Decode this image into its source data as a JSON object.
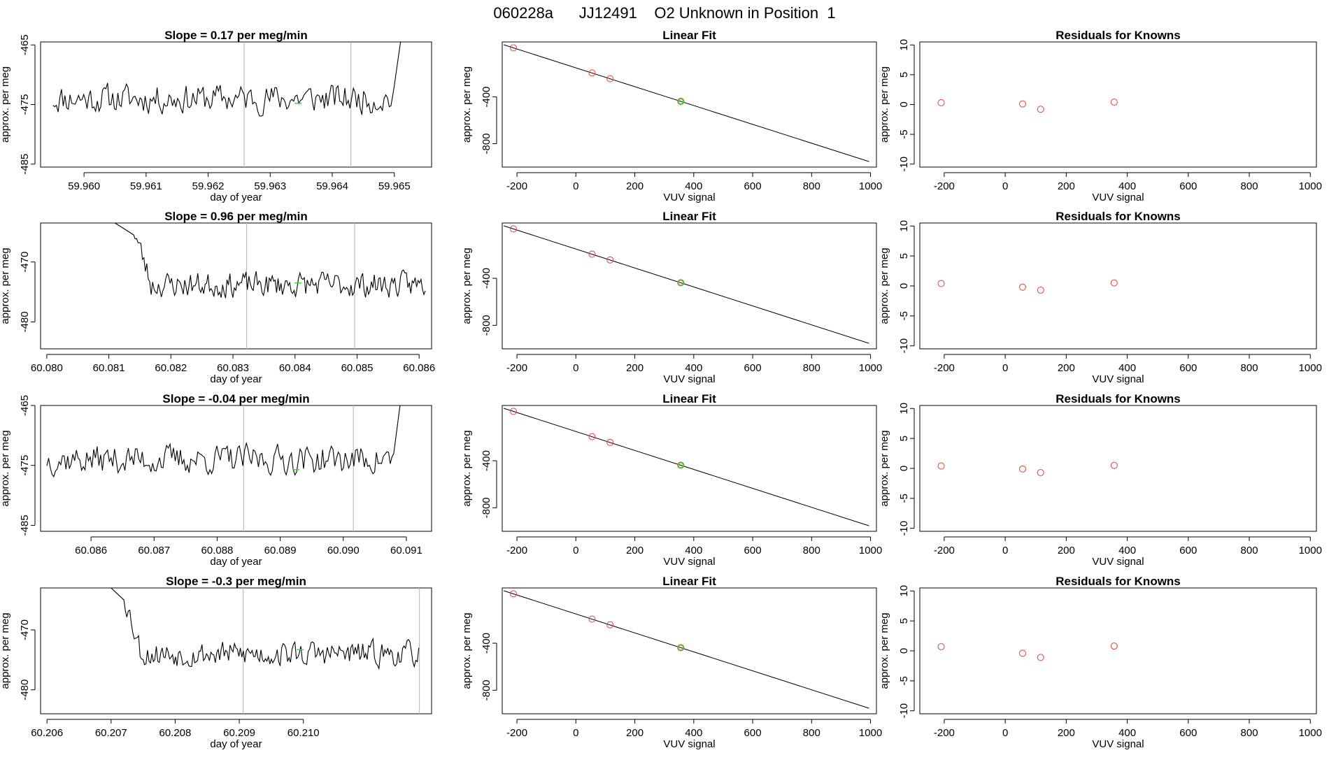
{
  "page_title": "060228a      JJ12491    O2 Unknown in Position  1",
  "colors": {
    "line": "#000000",
    "vline": "#bebebe",
    "known": "#d9534f",
    "unknown": "#33dd33",
    "axis": "#000000"
  },
  "chart_data": [
    {
      "row": 1,
      "type": "line",
      "title": "Slope =  0.17  per meg/min",
      "xlabel": "day of year",
      "ylabel": "approx. per meg",
      "xlim": [
        59.9593,
        59.9656
      ],
      "ylim": [
        -485.5,
        -464.5
      ],
      "xticks": [
        59.96,
        59.961,
        59.962,
        59.963,
        59.964,
        59.965
      ],
      "xtick_labels": [
        "59.960",
        "59.961",
        "59.962",
        "59.963",
        "59.964",
        "59.965"
      ],
      "yticks": [
        -465,
        -475,
        -485
      ],
      "ytick_labels": [
        "-465",
        "-475",
        "-485"
      ],
      "trace": {
        "x_start": 59.9595,
        "x_end": 59.965,
        "mean": -474.0,
        "amp": 2.8,
        "seed": 11,
        "start_tail": null,
        "end_tail": {
          "dx": 0.0001,
          "to": -464.5
        }
      },
      "vlines": [
        59.96258,
        59.9643
      ],
      "marker": {
        "x": 59.96345,
        "y": -474.8
      }
    },
    {
      "row": 2,
      "type": "line",
      "title": "Slope =  0.96  per meg/min",
      "xlabel": "day of year",
      "ylabel": "approx. per meg",
      "xlim": [
        60.0799,
        60.0862
      ],
      "ylim": [
        -484.5,
        -463.5
      ],
      "xticks": [
        60.08,
        60.081,
        60.082,
        60.083,
        60.084,
        60.085,
        60.086
      ],
      "xtick_labels": [
        "60.080",
        "60.081",
        "60.082",
        "60.083",
        "60.084",
        "60.085",
        "60.086"
      ],
      "yticks": [
        -470,
        -480
      ],
      "ytick_labels": [
        "-470",
        "-480"
      ],
      "trace": {
        "x_start": 60.0814,
        "x_end": 60.0861,
        "mean": -473.8,
        "amp": 2.4,
        "seed": 23,
        "start_tail": {
          "x": 60.0811,
          "y": -463.5
        },
        "end_tail": null
      },
      "vlines": [
        60.08322,
        60.08496
      ],
      "marker": {
        "x": 60.08405,
        "y": -473.5
      }
    },
    {
      "row": 3,
      "type": "line",
      "title": "Slope =  -0.04  per meg/min",
      "xlabel": "day of year",
      "ylabel": "approx. per meg",
      "xlim": [
        60.0852,
        60.0914
      ],
      "ylim": [
        -486.0,
        -465.0
      ],
      "xticks": [
        60.086,
        60.087,
        60.088,
        60.089,
        60.09,
        60.091
      ],
      "xtick_labels": [
        "60.086",
        "60.087",
        "60.088",
        "60.089",
        "60.090",
        "60.091"
      ],
      "yticks": [
        -465,
        -475,
        -485
      ],
      "ytick_labels": [
        "-465",
        "-475",
        "-485"
      ],
      "trace": {
        "x_start": 60.0853,
        "x_end": 60.0908,
        "mean": -474.0,
        "amp": 2.8,
        "seed": 37,
        "start_tail": null,
        "end_tail": {
          "dx": 0.0001,
          "to": -465.0
        }
      },
      "vlines": [
        60.08842,
        60.09016
      ],
      "marker": {
        "x": 60.08925,
        "y": -475.7
      }
    },
    {
      "row": 4,
      "type": "line",
      "title": "Slope =  -0.3  per meg/min",
      "xlabel": "day of year",
      "ylabel": "approx. per meg",
      "xlim": [
        60.2059,
        60.212
      ],
      "ylim": [
        -484.0,
        -463.0
      ],
      "xticks": [
        60.206,
        60.207,
        60.208,
        60.209,
        60.21
      ],
      "xtick_labels": [
        "60.206",
        "60.207",
        "60.208",
        "60.209",
        "60.210"
      ],
      "yticks": [
        -470,
        -480
      ],
      "ytick_labels": [
        "-470",
        "-480"
      ],
      "trace": {
        "x_start": 60.2072,
        "x_end": 60.2118,
        "mean": -474.0,
        "amp": 2.4,
        "seed": 53,
        "start_tail": {
          "x": 60.207,
          "y": -463.0
        },
        "end_tail": null
      },
      "vlines": [
        60.20906,
        60.21181
      ],
      "marker": {
        "x": 60.20995,
        "y": -473.3
      }
    },
    {
      "row": 1,
      "type": "scatter",
      "title": "Linear Fit",
      "xlabel": "VUV signal",
      "ylabel": "approx. per meg",
      "xlim": [
        -250,
        1020
      ],
      "ylim": [
        -1000,
        70
      ],
      "xticks": [
        -200,
        0,
        200,
        400,
        600,
        800,
        1000
      ],
      "xtick_labels": [
        "-200",
        "0",
        "200",
        "400",
        "600",
        "800",
        "1000"
      ],
      "yticks": [
        -400,
        -800
      ],
      "ytick_labels": [
        "-400",
        "-800"
      ],
      "fit_line": {
        "x": [
          -245,
          995
        ],
        "y": [
          46,
          -953
        ]
      },
      "known_points": {
        "x": [
          -212,
          55,
          116,
          356
        ],
        "y": [
          20,
          -195,
          -244,
          -438
        ]
      },
      "unknown_point": {
        "x": 356,
        "y": -438
      }
    },
    {
      "row": 2,
      "type": "scatter",
      "title": "Linear Fit",
      "xlabel": "VUV signal",
      "ylabel": "approx. per meg",
      "xlim": [
        -250,
        1020
      ],
      "ylim": [
        -1000,
        70
      ],
      "xticks": [
        -200,
        0,
        200,
        400,
        600,
        800,
        1000
      ],
      "xtick_labels": [
        "-200",
        "0",
        "200",
        "400",
        "600",
        "800",
        "1000"
      ],
      "yticks": [
        -400,
        -800
      ],
      "ytick_labels": [
        "-400",
        "-800"
      ],
      "fit_line": {
        "x": [
          -245,
          995
        ],
        "y": [
          46,
          -953
        ]
      },
      "known_points": {
        "x": [
          -212,
          55,
          116,
          356
        ],
        "y": [
          20,
          -195,
          -244,
          -438
        ]
      },
      "unknown_point": {
        "x": 356,
        "y": -438
      }
    },
    {
      "row": 3,
      "type": "scatter",
      "title": "Linear Fit",
      "xlabel": "VUV signal",
      "ylabel": "approx. per meg",
      "xlim": [
        -250,
        1020
      ],
      "ylim": [
        -1000,
        70
      ],
      "xticks": [
        -200,
        0,
        200,
        400,
        600,
        800,
        1000
      ],
      "xtick_labels": [
        "-200",
        "0",
        "200",
        "400",
        "600",
        "800",
        "1000"
      ],
      "yticks": [
        -400,
        -800
      ],
      "ytick_labels": [
        "-400",
        "-800"
      ],
      "fit_line": {
        "x": [
          -245,
          995
        ],
        "y": [
          46,
          -953
        ]
      },
      "known_points": {
        "x": [
          -212,
          55,
          116,
          356
        ],
        "y": [
          20,
          -195,
          -244,
          -438
        ]
      },
      "unknown_point": {
        "x": 356,
        "y": -438
      }
    },
    {
      "row": 4,
      "type": "scatter",
      "title": "Linear Fit",
      "xlabel": "VUV signal",
      "ylabel": "approx. per meg",
      "xlim": [
        -250,
        1020
      ],
      "ylim": [
        -1000,
        70
      ],
      "xticks": [
        -200,
        0,
        200,
        400,
        600,
        800,
        1000
      ],
      "xtick_labels": [
        "-200",
        "0",
        "200",
        "400",
        "600",
        "800",
        "1000"
      ],
      "yticks": [
        -400,
        -800
      ],
      "ytick_labels": [
        "-400",
        "-800"
      ],
      "fit_line": {
        "x": [
          -245,
          995
        ],
        "y": [
          46,
          -953
        ]
      },
      "known_points": {
        "x": [
          -212,
          55,
          116,
          356
        ],
        "y": [
          20,
          -195,
          -244,
          -438
        ]
      },
      "unknown_point": {
        "x": 356,
        "y": -438
      }
    },
    {
      "row": 1,
      "type": "scatter",
      "title": "Residuals for Knowns",
      "xlabel": "VUV signal",
      "ylabel": "approx. per meg",
      "xlim": [
        -280,
        1020
      ],
      "ylim": [
        -10.5,
        10.5
      ],
      "xticks": [
        -200,
        0,
        200,
        400,
        600,
        800,
        1000
      ],
      "xtick_labels": [
        "-200",
        "0",
        "200",
        "400",
        "600",
        "800",
        "1000"
      ],
      "yticks": [
        10,
        5,
        0,
        -5,
        -10
      ],
      "ytick_labels": [
        "10",
        "5",
        "0",
        "-5",
        "-10"
      ],
      "points": {
        "x": [
          -210,
          57,
          116,
          357
        ],
        "y": [
          0.3,
          0.1,
          -0.8,
          0.4
        ]
      }
    },
    {
      "row": 2,
      "type": "scatter",
      "title": "Residuals for Knowns",
      "xlabel": "VUV signal",
      "ylabel": "approx. per meg",
      "xlim": [
        -280,
        1020
      ],
      "ylim": [
        -10.5,
        10.5
      ],
      "xticks": [
        -200,
        0,
        200,
        400,
        600,
        800,
        1000
      ],
      "xtick_labels": [
        "-200",
        "0",
        "200",
        "400",
        "600",
        "800",
        "1000"
      ],
      "yticks": [
        10,
        5,
        0,
        -5,
        -10
      ],
      "ytick_labels": [
        "10",
        "5",
        "0",
        "-5",
        "-10"
      ],
      "points": {
        "x": [
          -210,
          57,
          116,
          357
        ],
        "y": [
          0.4,
          -0.2,
          -0.7,
          0.5
        ]
      }
    },
    {
      "row": 3,
      "type": "scatter",
      "title": "Residuals for Knowns",
      "xlabel": "VUV signal",
      "ylabel": "approx. per meg",
      "xlim": [
        -280,
        1020
      ],
      "ylim": [
        -10.5,
        10.5
      ],
      "xticks": [
        -200,
        0,
        200,
        400,
        600,
        800,
        1000
      ],
      "xtick_labels": [
        "-200",
        "0",
        "200",
        "400",
        "600",
        "800",
        "1000"
      ],
      "yticks": [
        10,
        5,
        0,
        -5,
        -10
      ],
      "ytick_labels": [
        "10",
        "5",
        "0",
        "-5",
        "-10"
      ],
      "points": {
        "x": [
          -210,
          57,
          116,
          357
        ],
        "y": [
          0.4,
          -0.1,
          -0.7,
          0.5
        ]
      }
    },
    {
      "row": 4,
      "type": "scatter",
      "title": "Residuals for Knowns",
      "xlabel": "VUV signal",
      "ylabel": "approx. per meg",
      "xlim": [
        -280,
        1020
      ],
      "ylim": [
        -10.5,
        10.5
      ],
      "xticks": [
        -200,
        0,
        200,
        400,
        600,
        800,
        1000
      ],
      "xtick_labels": [
        "-200",
        "0",
        "200",
        "400",
        "600",
        "800",
        "1000"
      ],
      "yticks": [
        10,
        5,
        0,
        -5,
        -10
      ],
      "ytick_labels": [
        "10",
        "5",
        "0",
        "-5",
        "-10"
      ],
      "points": {
        "x": [
          -210,
          57,
          116,
          357
        ],
        "y": [
          0.7,
          -0.4,
          -1.1,
          0.8
        ]
      }
    }
  ]
}
